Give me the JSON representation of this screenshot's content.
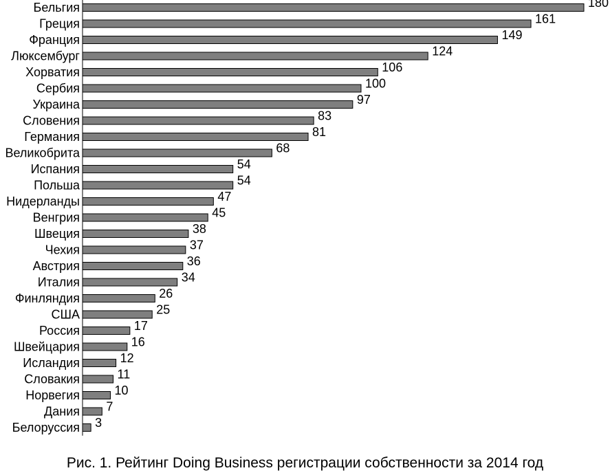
{
  "caption": "Рис. 1. Рейтинг Doing Business регистрации собственности за 2014 год",
  "chart_data": {
    "type": "bar",
    "orientation": "horizontal",
    "title": "",
    "xlabel": "",
    "ylabel": "",
    "xlim": [
      0,
      180
    ],
    "grid": false,
    "legend": "none",
    "bar_color": "#7f7f7f",
    "categories": [
      "Бельгия",
      "Греция",
      "Франция",
      "Люксембург",
      "Хорватия",
      "Сербия",
      "Украина",
      "Словения",
      "Германия",
      "Великобрита",
      "Испания",
      "Польша",
      "Нидерланды",
      "Венгрия",
      "Швеция",
      "Чехия",
      "Австрия",
      "Италия",
      "Финляндия",
      "США",
      "Россия",
      "Швейцария",
      "Исландия",
      "Словакия",
      "Норвегия",
      "Дания",
      "Белоруссия"
    ],
    "values": [
      180,
      161,
      149,
      124,
      106,
      100,
      97,
      83,
      81,
      68,
      54,
      54,
      47,
      45,
      38,
      37,
      36,
      34,
      26,
      25,
      17,
      16,
      12,
      11,
      10,
      7,
      3
    ]
  }
}
